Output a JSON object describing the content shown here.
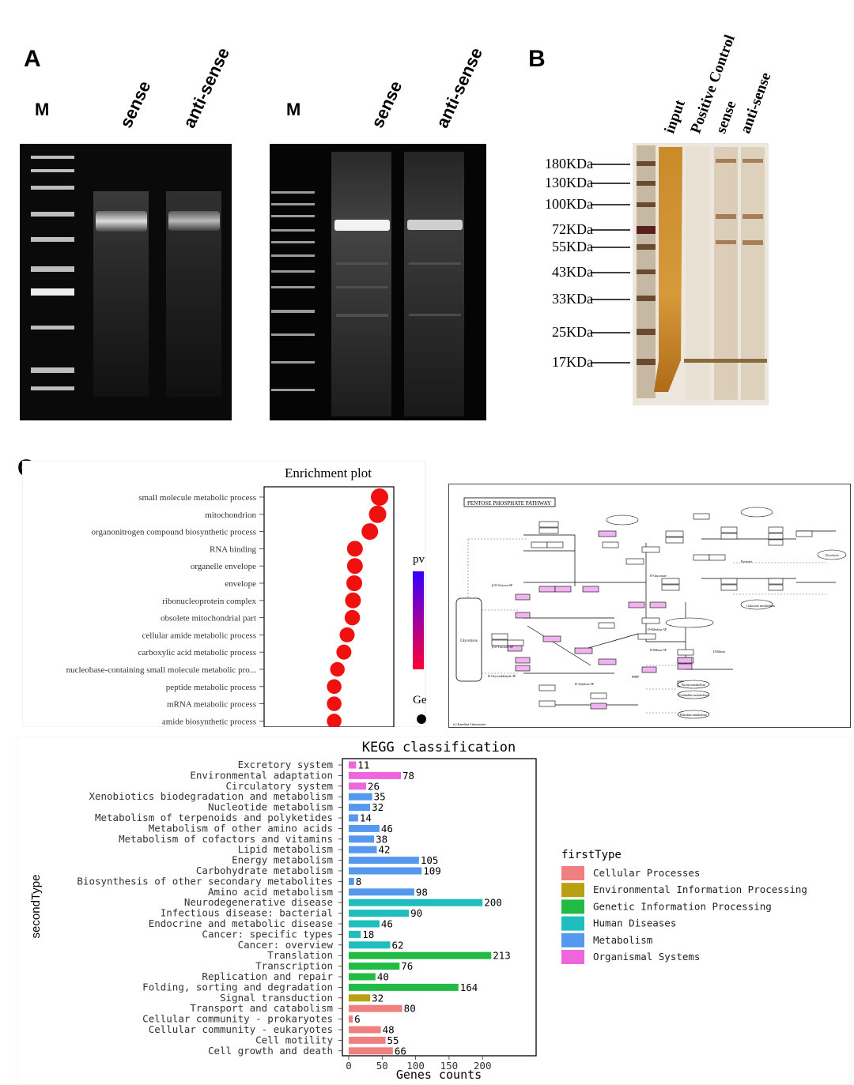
{
  "panelA": {
    "letter": "A",
    "gel1": {
      "marker_label": "M",
      "lanes": [
        "sense",
        "anti-sense"
      ]
    },
    "gel2": {
      "marker_label": "M",
      "lanes": [
        "sense",
        "anti-sense"
      ]
    }
  },
  "panelB": {
    "letter": "B",
    "lanes": [
      "input",
      "Positive Control",
      "sense",
      "anti-sense"
    ],
    "markers": [
      "180KDa",
      "130KDa",
      "100KDa",
      "72KDa",
      "55KDa",
      "43KDa",
      "33KDa",
      "25KDa",
      "17KDa"
    ]
  },
  "panelC": {
    "letter": "C",
    "enrichment": {
      "title": "Enrichment plot",
      "legend_pvalue_label": "pv",
      "legend_gene_label": "Ge",
      "colors": {
        "low": "#ff0000",
        "high": "#3300ff"
      },
      "chart_data": {
        "type": "scatter",
        "title": "Enrichment plot",
        "categories": [
          "small molecule metabolic process",
          "mitochondrion",
          "organonitrogen compound biosynthetic process",
          "RNA binding",
          "organelle envelope",
          "envelope",
          "ribonucleoprotein complex",
          "obsolete mitochondrial part",
          "cellular amide metabolic process",
          "carboxylic acid metabolic process",
          "nucleobase-containing small molecule metabolic pro...",
          "peptide metabolic process",
          "mRNA metabolic process",
          "amide biosynthetic process"
        ],
        "values": [
          1.0,
          0.97,
          0.85,
          0.62,
          0.62,
          0.61,
          0.59,
          0.58,
          0.5,
          0.45,
          0.35,
          0.3,
          0.3,
          0.3
        ],
        "sizes": [
          1.0,
          1.0,
          0.9,
          0.8,
          0.8,
          0.8,
          0.8,
          0.75,
          0.7,
          0.7,
          0.65,
          0.65,
          0.65,
          0.65
        ]
      }
    },
    "pathway": {
      "title": "PENTOSE PHOSPHATE PATHWAY",
      "nodes": {
        "glycolysis": "Glycolysis",
        "glycolysis2": "Glycolysis",
        "pyruvate": "Pyruvate",
        "g6p": "β-D-Glucose-6P",
        "f6p": "β-D-Fructose-6P",
        "ga3p": "D-Glyceraldehyde-3P",
        "r5p": "D-Ribose-5P",
        "ru5p": "D-Ribulose-5P",
        "x5p": "D-Xylulose-5P",
        "gluconate": "D-Gluconate",
        "prpp": "PRPP",
        "ribose": "D-Ribose",
        "galactose": "Galactose metabolism",
        "purine": "Purine metabolism",
        "pyrimidine": "Pyrimidine metabolism",
        "histidine": "Histidine metabolism",
        "copyright": "(c) Kanehisa Laboratories"
      }
    }
  },
  "kegg": {
    "title": "KEGG classification",
    "legend_title": "firstType",
    "y_axis_label": "secondType",
    "x_axis_label": "Genes counts",
    "colors": {
      "Cellular Processes": "#f08080",
      "Environmental Information Processing": "#b8a010",
      "Genetic Information Processing": "#22bb44",
      "Human Diseases": "#1ebebe",
      "Metabolism": "#5599ee",
      "Organismal Systems": "#ee66dd"
    },
    "chart_data": {
      "type": "bar",
      "title": "KEGG classification",
      "xlabel": "Genes counts",
      "ylabel": "secondType",
      "xlim": [
        0,
        250
      ],
      "xticks": [
        0,
        50,
        100,
        150,
        200
      ],
      "legend": [
        "Cellular Processes",
        "Environmental Information Processing",
        "Genetic Information Processing",
        "Human Diseases",
        "Metabolism",
        "Organismal Systems"
      ],
      "categories": [
        "Excretory system",
        "Environmental adaptation",
        "Circulatory system",
        "Xenobiotics biodegradation and metabolism",
        "Nucleotide metabolism",
        "Metabolism of terpenoids and polyketides",
        "Metabolism of other amino acids",
        "Metabolism of cofactors and vitamins",
        "Lipid metabolism",
        "Energy metabolism",
        "Carbohydrate metabolism",
        "Biosynthesis of other secondary metabolites",
        "Amino acid metabolism",
        "Neurodegenerative disease",
        "Infectious disease: bacterial",
        "Endocrine and metabolic disease",
        "Cancer: specific types",
        "Cancer: overview",
        "Translation",
        "Transcription",
        "Replication and repair",
        "Folding, sorting and degradation",
        "Signal transduction",
        "Transport and catabolism",
        "Cellular community - prokaryotes",
        "Cellular community - eukaryotes",
        "Cell motility",
        "Cell growth and death"
      ],
      "values": [
        11,
        78,
        26,
        35,
        32,
        14,
        46,
        38,
        42,
        105,
        109,
        8,
        98,
        200,
        90,
        46,
        18,
        62,
        213,
        76,
        40,
        164,
        32,
        80,
        6,
        48,
        55,
        66
      ],
      "groups": [
        "Organismal Systems",
        "Organismal Systems",
        "Organismal Systems",
        "Metabolism",
        "Metabolism",
        "Metabolism",
        "Metabolism",
        "Metabolism",
        "Metabolism",
        "Metabolism",
        "Metabolism",
        "Metabolism",
        "Metabolism",
        "Human Diseases",
        "Human Diseases",
        "Human Diseases",
        "Human Diseases",
        "Human Diseases",
        "Genetic Information Processing",
        "Genetic Information Processing",
        "Genetic Information Processing",
        "Genetic Information Processing",
        "Environmental Information Processing",
        "Cellular Processes",
        "Cellular Processes",
        "Cellular Processes",
        "Cellular Processes",
        "Cellular Processes"
      ]
    }
  }
}
